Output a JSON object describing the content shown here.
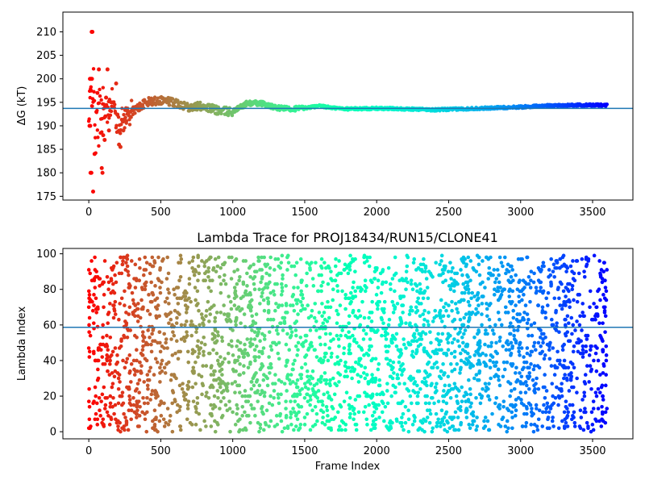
{
  "chart_data": [
    {
      "type": "scatter",
      "title": "",
      "xlabel": "",
      "ylabel": "ΔG (kT)",
      "xlim": [
        -180,
        3780
      ],
      "ylim": [
        174.2,
        214.2
      ],
      "xticks": [
        0,
        500,
        1000,
        1500,
        2000,
        2500,
        3000,
        3500
      ],
      "yticks": [
        175,
        180,
        185,
        190,
        195,
        200,
        205,
        210
      ],
      "xtick_labels": [
        "0",
        "500",
        "1000",
        "1500",
        "2000",
        "2500",
        "3000",
        "3500"
      ],
      "ytick_labels": [
        "175",
        "180",
        "185",
        "190",
        "195",
        "200",
        "205",
        "210"
      ],
      "colormap": "rainbow (red at frame 0 → purple at frame 3600)",
      "reference_line": {
        "y": 193.7,
        "color": "#1f77b4"
      },
      "series_trend": {
        "x": [
          0,
          25,
          50,
          80,
          100,
          130,
          160,
          200,
          250,
          300,
          400,
          500,
          600,
          700,
          800,
          900,
          1000,
          1100,
          1200,
          1300,
          1400,
          1500,
          1600,
          1700,
          1800,
          2000,
          2200,
          2400,
          2600,
          2800,
          3000,
          3200,
          3400,
          3600
        ],
        "y": [
          190,
          200,
          188,
          193,
          195,
          192,
          196,
          190,
          192,
          193,
          195,
          195.5,
          195,
          194,
          194.2,
          193.2,
          193.0,
          194.8,
          194.8,
          193.8,
          193.6,
          193.8,
          194.2,
          193.8,
          193.6,
          193.7,
          193.6,
          193.4,
          193.6,
          193.8,
          194.0,
          194.3,
          194.4,
          194.4
        ]
      },
      "outlier_points": {
        "x": [
          10,
          15,
          20,
          25,
          5,
          12,
          18,
          30,
          8,
          22,
          40,
          60,
          70,
          90,
          95,
          100,
          110,
          115,
          120,
          130,
          140,
          160,
          190,
          210,
          220,
          240,
          260,
          290
        ],
        "y": [
          190,
          200,
          210,
          210,
          190,
          180,
          180,
          176,
          200,
          200,
          184,
          197,
          202,
          181,
          180,
          188,
          187,
          192,
          196,
          202,
          189,
          195,
          199,
          186,
          185.5,
          189,
          191,
          193
        ]
      }
    },
    {
      "type": "scatter",
      "title": "Lambda Trace for PROJ18434/RUN15/CLONE41",
      "xlabel": "Frame Index",
      "ylabel": "Lambda Index",
      "xlim": [
        -180,
        3780
      ],
      "ylim": [
        -4,
        103
      ],
      "xticks": [
        0,
        500,
        1000,
        1500,
        2000,
        2500,
        3000,
        3500
      ],
      "yticks": [
        0,
        20,
        40,
        60,
        80,
        100
      ],
      "xtick_labels": [
        "0",
        "500",
        "1000",
        "1500",
        "2000",
        "2500",
        "3000",
        "3500"
      ],
      "ytick_labels": [
        "0",
        "20",
        "40",
        "60",
        "80",
        "100"
      ],
      "colormap": "rainbow (red at frame 0 → purple at frame 3600)",
      "reference_line": {
        "y": 58.7,
        "color": "#1f77b4"
      },
      "frame_range": [
        0,
        3600
      ],
      "lambda_range": [
        0,
        99
      ],
      "approx_points": 3000
    }
  ]
}
